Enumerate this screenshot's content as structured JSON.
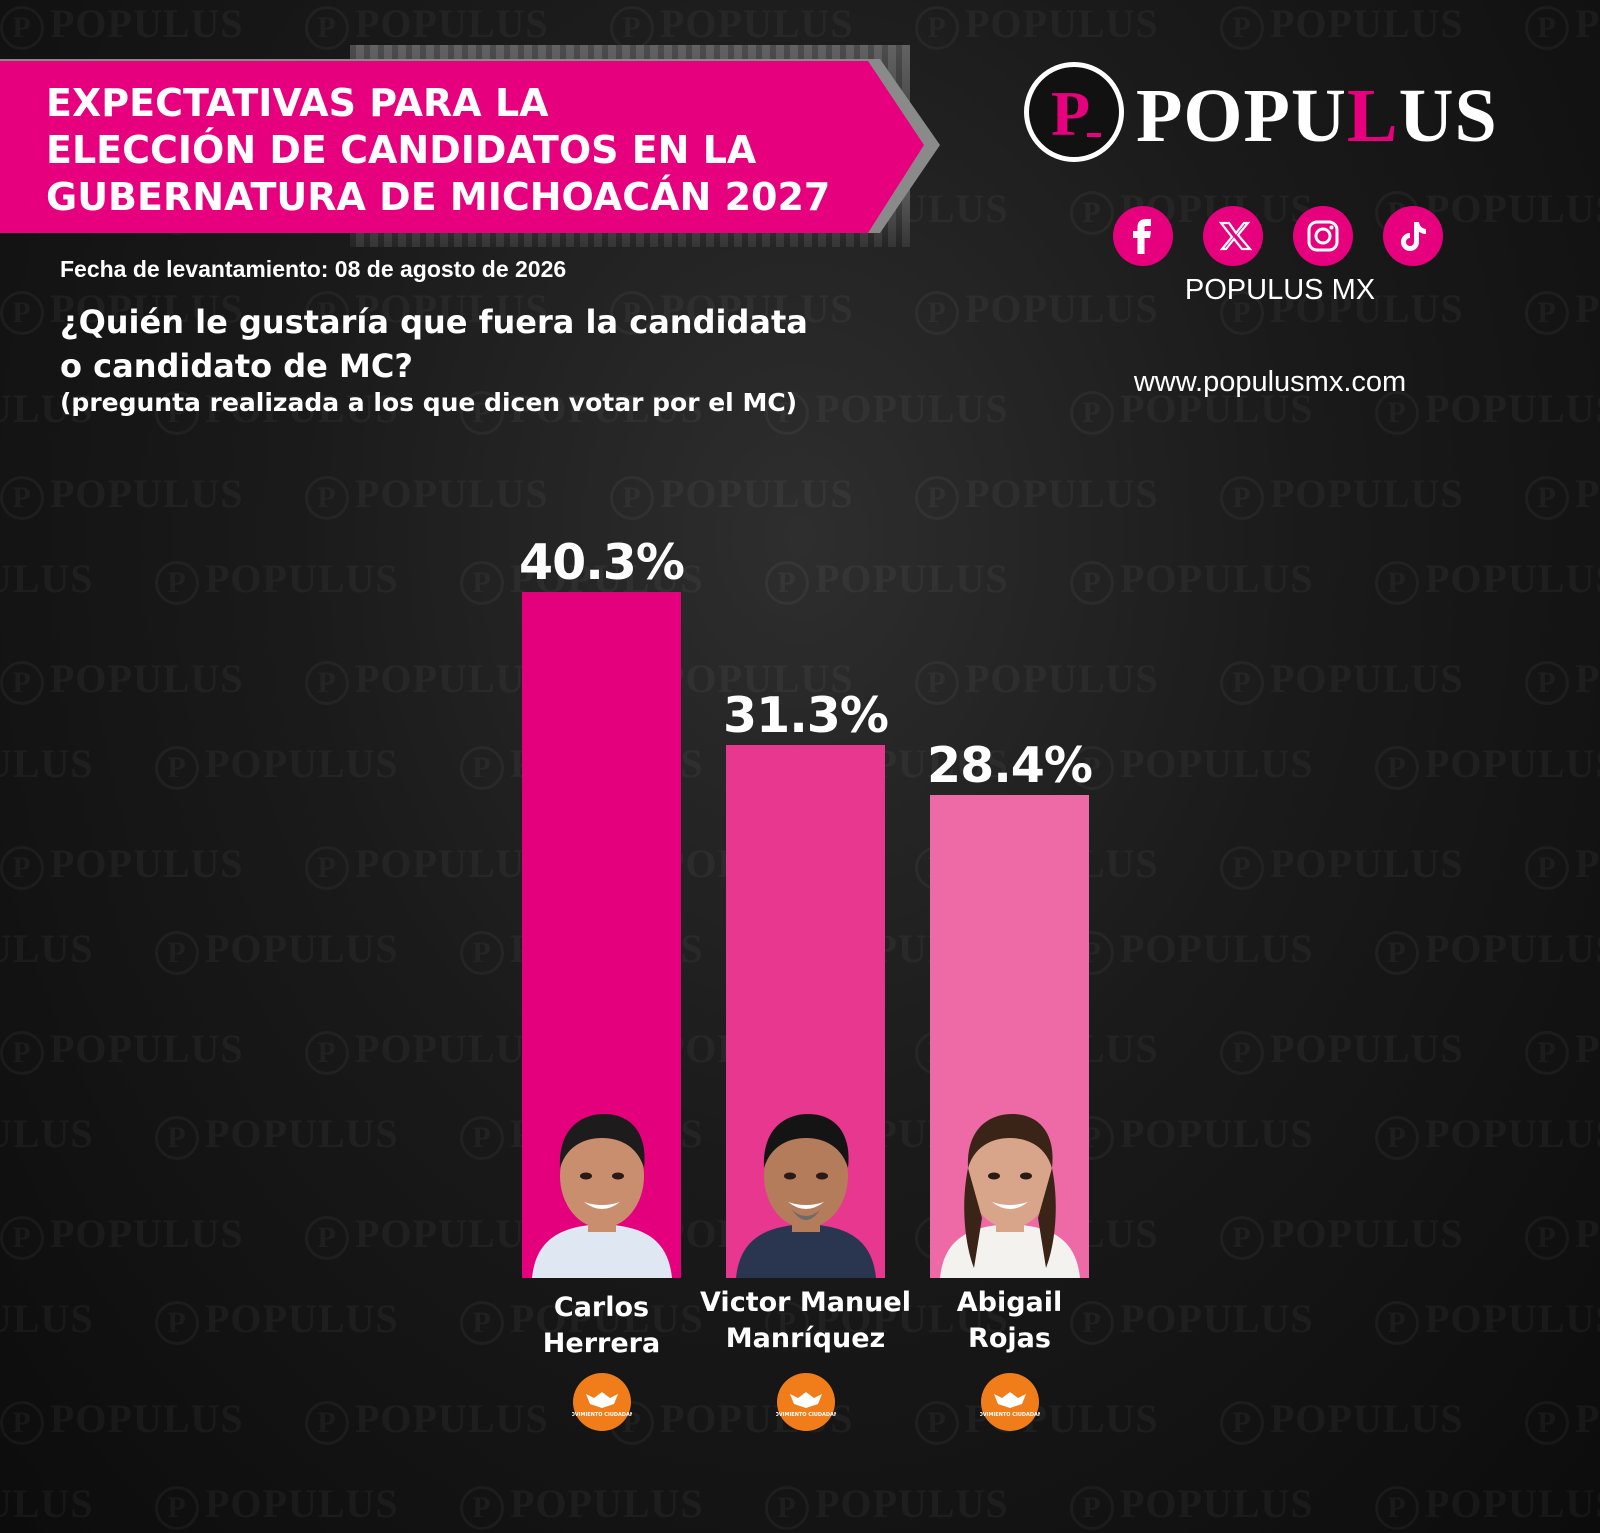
{
  "header": {
    "title_lines": [
      "EXPECTATIVAS PARA LA",
      "ELECCIÓN DE CANDIDATOS EN LA",
      "GUBERNATURA DE MICHOACÁN 2027"
    ],
    "date_line": "Fecha de levantamiento: 08 de agosto de 2026",
    "question_lines": [
      "¿Quién le gustaría que fuera la candidata",
      "o candidato de MC?"
    ],
    "subquestion": "(pregunta realizada a los que dicen votar por el MC)"
  },
  "brand": {
    "logo_letter": "P",
    "logo_word_a": "POPU",
    "logo_word_b": "L",
    "logo_word_c": "US",
    "watermark_word": "POPULUS",
    "social_icons": [
      "facebook-icon",
      "x-icon",
      "instagram-icon",
      "tiktok-icon"
    ],
    "social_handle": "POPULUS MX",
    "website": "www.populusmx.com",
    "party_logo_text": "MOVIMIENTO CIUDADANO"
  },
  "colors": {
    "background": "#141414",
    "banner": "#e6007e",
    "bar_1": "#e4007c",
    "bar_2": "#e8378f",
    "bar_3": "#ee6aa7",
    "party_orange": "#f07d1a"
  },
  "chart_data": {
    "type": "bar",
    "categories": [
      "Carlos Herrera",
      "Victor Manuel Manríquez",
      "Abigail Rojas"
    ],
    "name_lines": [
      [
        "Carlos",
        "Herrera"
      ],
      [
        "Victor Manuel",
        "Manríquez"
      ],
      [
        "Abigail",
        "Rojas"
      ]
    ],
    "values": [
      40.3,
      31.3,
      28.4
    ],
    "value_labels": [
      "40.3%",
      "31.3%",
      "28.4%"
    ],
    "ylim": [
      0,
      40.3
    ],
    "grid": false,
    "legend": "none"
  }
}
